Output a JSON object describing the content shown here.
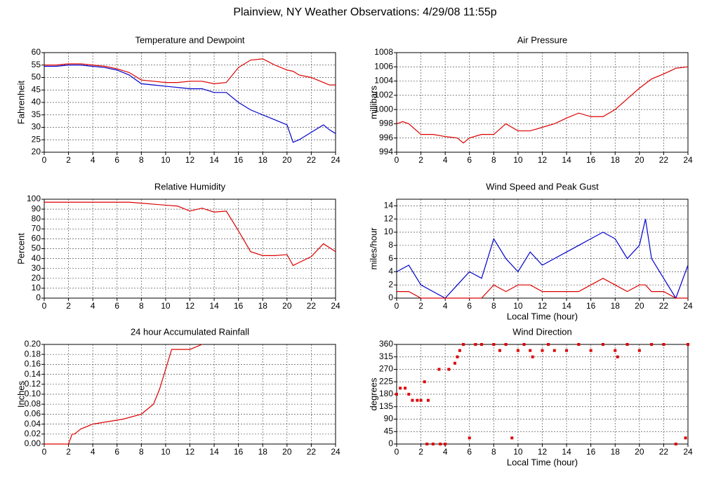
{
  "title": "Plainview, NY Weather Observations: 4/29/08 11:55p",
  "chart_data": [
    {
      "type": "line",
      "title": "Temperature and Dewpoint",
      "ylabel": "Fahrenheit",
      "x": [
        0,
        1,
        2,
        3,
        4,
        5,
        6,
        7,
        8,
        9,
        10,
        11,
        12,
        13,
        14,
        15,
        16,
        17,
        18,
        19,
        20,
        20.5,
        21,
        22,
        23,
        23.5,
        24
      ],
      "series": [
        {
          "color": "#dd0000",
          "values": [
            55,
            55,
            55.5,
            55.5,
            55,
            54.5,
            53.5,
            52,
            49,
            48.5,
            48,
            48,
            48.5,
            48.5,
            47.5,
            48,
            54,
            57,
            57.5,
            55,
            53,
            52.5,
            51,
            50,
            48,
            47,
            47
          ]
        },
        {
          "color": "#0000cc",
          "values": [
            54.5,
            54.5,
            55,
            55,
            54.5,
            54,
            53,
            51,
            47.5,
            47,
            46.5,
            46,
            45.5,
            45.5,
            44,
            44,
            40,
            37,
            35,
            33,
            31,
            24,
            25,
            28,
            31,
            29,
            27.5
          ]
        }
      ],
      "xlim": [
        0,
        24
      ],
      "ylim": [
        20,
        60
      ],
      "xticks": [
        0,
        2,
        4,
        6,
        8,
        10,
        12,
        14,
        16,
        18,
        20,
        22,
        24
      ],
      "yticks": [
        20,
        25,
        30,
        35,
        40,
        45,
        50,
        55,
        60
      ],
      "grid": true
    },
    {
      "type": "line",
      "title": "Air Pressure",
      "ylabel": "millibars",
      "x": [
        0,
        0.5,
        1,
        2,
        3,
        4,
        5,
        5.5,
        6,
        7,
        8,
        9,
        10,
        11,
        12,
        13,
        14,
        15,
        16,
        17,
        18,
        19,
        20,
        21,
        22,
        23,
        24
      ],
      "series": [
        {
          "color": "#dd0000",
          "values": [
            998,
            998.3,
            998,
            996.5,
            996.5,
            996.2,
            996,
            995.3,
            996,
            996.5,
            996.5,
            998,
            997,
            997,
            997.5,
            998,
            998.8,
            999.5,
            999,
            999,
            1000,
            1001.5,
            1003,
            1004.3,
            1005,
            1005.8,
            1006
          ]
        }
      ],
      "xlim": [
        0,
        24
      ],
      "ylim": [
        994,
        1008
      ],
      "xticks": [
        0,
        2,
        4,
        6,
        8,
        10,
        12,
        14,
        16,
        18,
        20,
        22,
        24
      ],
      "yticks": [
        994,
        996,
        998,
        1000,
        1002,
        1004,
        1006,
        1008
      ],
      "grid": true
    },
    {
      "type": "line",
      "title": "Relative Humidity",
      "ylabel": "Percent",
      "x": [
        0,
        1,
        2,
        3,
        4,
        5,
        6,
        7,
        8,
        9,
        10,
        11,
        12,
        13,
        14,
        15,
        16,
        17,
        18,
        19,
        20,
        20.5,
        21,
        22,
        23,
        24
      ],
      "series": [
        {
          "color": "#dd0000",
          "values": [
            97,
            97,
            97,
            97,
            97,
            97,
            97,
            97,
            96,
            95,
            94,
            93,
            88,
            91,
            87,
            88,
            68,
            47,
            43,
            43,
            44,
            33,
            36,
            42,
            55,
            47
          ]
        }
      ],
      "xlim": [
        0,
        24
      ],
      "ylim": [
        0,
        100
      ],
      "xticks": [
        0,
        2,
        4,
        6,
        8,
        10,
        12,
        14,
        16,
        18,
        20,
        22,
        24
      ],
      "yticks": [
        0,
        10,
        20,
        30,
        40,
        50,
        60,
        70,
        80,
        90,
        100
      ],
      "grid": true
    },
    {
      "type": "line",
      "title": "Wind Speed and Peak Gust",
      "ylabel": "miles/hour",
      "xlabel": "Local Time (hour)",
      "x": [
        0,
        1,
        2,
        3,
        4,
        5,
        6,
        7,
        8,
        9,
        10,
        11,
        12,
        13,
        14,
        15,
        16,
        17,
        18,
        19,
        20,
        20.5,
        21,
        22,
        23,
        24
      ],
      "series": [
        {
          "color": "#0000cc",
          "values": [
            4,
            5,
            2,
            1,
            0,
            2,
            4,
            3,
            9,
            6,
            4,
            7,
            5,
            6,
            7,
            8,
            9,
            10,
            9,
            6,
            8,
            12,
            6,
            3,
            0,
            5
          ]
        },
        {
          "color": "#dd0000",
          "values": [
            1,
            1,
            0,
            0,
            0,
            0,
            0,
            0,
            2,
            1,
            2,
            2,
            1,
            1,
            1,
            1,
            2,
            3,
            2,
            1,
            2,
            2,
            1,
            1,
            0,
            0
          ]
        }
      ],
      "xlim": [
        0,
        24
      ],
      "ylim": [
        0,
        15
      ],
      "xticks": [
        0,
        2,
        4,
        6,
        8,
        10,
        12,
        14,
        16,
        18,
        20,
        22,
        24
      ],
      "yticks": [
        0,
        2,
        4,
        6,
        8,
        10,
        12,
        14
      ],
      "grid": true
    },
    {
      "type": "line",
      "title": "24 hour Accumulated Rainfall",
      "ylabel": "Inches",
      "x": [
        0,
        2,
        2.3,
        2.5,
        3,
        4,
        6.5,
        8,
        9,
        9.5,
        10,
        10.5,
        11,
        12,
        13
      ],
      "series": [
        {
          "color": "#dd0000",
          "values": [
            0,
            0,
            0.02,
            0.02,
            0.03,
            0.04,
            0.05,
            0.06,
            0.08,
            0.11,
            0.15,
            0.19,
            0.19,
            0.19,
            0.2
          ]
        }
      ],
      "xlim": [
        0,
        24
      ],
      "ylim": [
        0,
        0.2
      ],
      "xticks": [
        0,
        2,
        4,
        6,
        8,
        10,
        12,
        14,
        16,
        18,
        20,
        22,
        24
      ],
      "yticks": [
        {
          "value": 0,
          "label": "0.00"
        },
        {
          "value": 0.02,
          "label": "0.02"
        },
        {
          "value": 0.04,
          "label": "0.04"
        },
        {
          "value": 0.06,
          "label": "0.06"
        },
        {
          "value": 0.08,
          "label": "0.08"
        },
        {
          "value": 0.1,
          "label": "0.10"
        },
        {
          "value": 0.12,
          "label": "0.12"
        },
        {
          "value": 0.14,
          "label": "0.14"
        },
        {
          "value": 0.16,
          "label": "0.16"
        },
        {
          "value": 0.18,
          "label": "0.18"
        },
        {
          "value": 0.2,
          "label": "0.20"
        }
      ],
      "grid": true
    },
    {
      "type": "scatter",
      "title": "Wind Direction",
      "ylabel": "degrees",
      "xlabel": "Local Time (hour)",
      "x": [
        0,
        0.3,
        0.7,
        1,
        1.3,
        1.7,
        2,
        2.3,
        2.5,
        2.6,
        3,
        3.5,
        3.6,
        4,
        4.3,
        4.8,
        5,
        5.2,
        5.5,
        6,
        6.5,
        7,
        8,
        8.5,
        9,
        9.5,
        10,
        10.5,
        11,
        11.2,
        12,
        12.5,
        13,
        14,
        15,
        16,
        17,
        18,
        18.2,
        19,
        20,
        21,
        22,
        23,
        23.8,
        24
      ],
      "series": [
        {
          "color": "#dd0000",
          "values": [
            180,
            202,
            202,
            180,
            158,
            158,
            158,
            225,
            0,
            158,
            0,
            270,
            0,
            0,
            270,
            292,
            315,
            338,
            360,
            22,
            360,
            360,
            360,
            338,
            360,
            22,
            338,
            360,
            338,
            315,
            338,
            360,
            338,
            338,
            360,
            338,
            360,
            338,
            315,
            360,
            338,
            360,
            360,
            0,
            22,
            360
          ]
        }
      ],
      "xlim": [
        0,
        24
      ],
      "ylim": [
        0,
        360
      ],
      "xticks": [
        0,
        2,
        4,
        6,
        8,
        10,
        12,
        14,
        16,
        18,
        20,
        22,
        24
      ],
      "yticks": [
        0,
        45,
        90,
        135,
        180,
        225,
        270,
        315,
        360
      ],
      "grid": true
    }
  ]
}
